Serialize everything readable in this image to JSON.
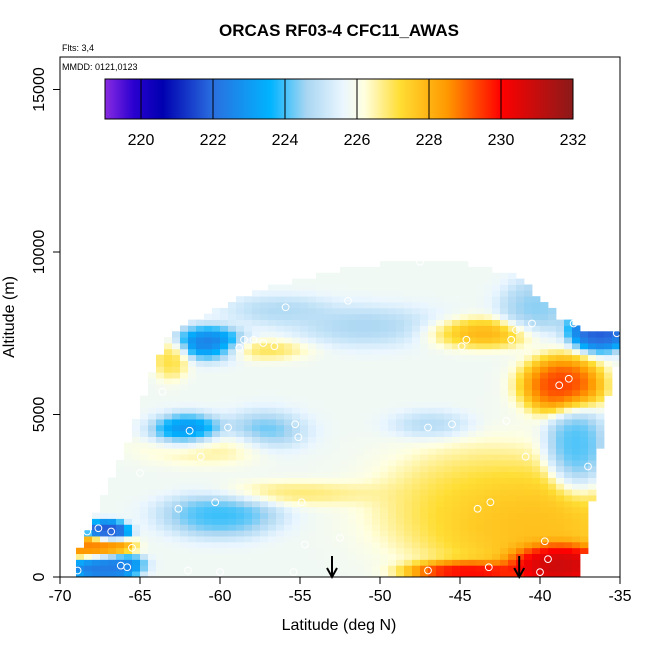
{
  "chart_data": {
    "type": "heatmap",
    "title": "ORCAS RF03-4 CFC11_AWAS",
    "xlabel": "Latitude (deg N)",
    "ylabel": "Altitude (m)",
    "notes": [
      "Flts: 3,4",
      "MMDD: 0121,0123"
    ],
    "xlim": [
      -70,
      -35
    ],
    "ylim": [
      0,
      16000
    ],
    "x_ticks": [
      -70,
      -65,
      -60,
      -55,
      -50,
      -45,
      -40,
      -35
    ],
    "x_tick_labels": [
      "-70",
      "-65",
      "-60",
      "-55",
      "-50",
      "-45",
      "-40",
      "-35"
    ],
    "y_ticks": [
      0,
      5000,
      10000,
      15000
    ],
    "y_tick_labels": [
      "0",
      "5000",
      "10000",
      "15000"
    ],
    "colorbar": {
      "min": 219,
      "max": 232,
      "ticks": [
        220,
        222,
        224,
        226,
        228,
        230,
        232
      ],
      "tick_labels": [
        "220",
        "222",
        "224",
        "226",
        "228",
        "230",
        "232"
      ],
      "stops": [
        {
          "v": 219.0,
          "color": "#8a2be2"
        },
        {
          "v": 219.8,
          "color": "#2a00d0"
        },
        {
          "v": 220.6,
          "color": "#0000b0"
        },
        {
          "v": 222.0,
          "color": "#2a6fe0"
        },
        {
          "v": 223.6,
          "color": "#00b4ff"
        },
        {
          "v": 224.6,
          "color": "#a9d6f2"
        },
        {
          "v": 225.6,
          "color": "#eaf6ff"
        },
        {
          "v": 226.2,
          "color": "#ffffe0"
        },
        {
          "v": 227.2,
          "color": "#ffdd33"
        },
        {
          "v": 228.5,
          "color": "#ff9900"
        },
        {
          "v": 230.0,
          "color": "#ff0000"
        },
        {
          "v": 232.0,
          "color": "#8b1a1a"
        }
      ]
    },
    "envelope": [
      [
        -69.0,
        500
      ],
      [
        -68.6,
        1000
      ],
      [
        -68.0,
        1800
      ],
      [
        -67.0,
        2800
      ],
      [
        -65.5,
        4500
      ],
      [
        -64.5,
        6000
      ],
      [
        -63.5,
        7200
      ],
      [
        -62.0,
        7800
      ],
      [
        -59.0,
        8500
      ],
      [
        -57.0,
        8900
      ],
      [
        -54.0,
        9300
      ],
      [
        -51.0,
        9600
      ],
      [
        -48.0,
        9700
      ],
      [
        -46.5,
        9800
      ],
      [
        -44.0,
        9600
      ],
      [
        -41.5,
        9300
      ],
      [
        -40.0,
        8600
      ],
      [
        -38.8,
        8000
      ],
      [
        -37.5,
        7600
      ],
      [
        -35.0,
        7600
      ],
      [
        -35.0,
        7000
      ],
      [
        -36.0,
        5000
      ],
      [
        -36.5,
        3000
      ],
      [
        -37.0,
        1500
      ],
      [
        -37.5,
        0
      ],
      [
        -69.3,
        0
      ]
    ],
    "features": [
      {
        "lat": -52.0,
        "alt": 5600,
        "value": 225.8,
        "sx": 10.0,
        "sy": 4000
      },
      {
        "lat": -45.0,
        "alt": 2500,
        "value": 227.6,
        "sx": 4.5,
        "sy": 1300
      },
      {
        "lat": -42.0,
        "alt": 1800,
        "value": 228.0,
        "sx": 3.5,
        "sy": 1000
      },
      {
        "lat": -39.5,
        "alt": 500,
        "value": 231.3,
        "sx": 1.8,
        "sy": 400
      },
      {
        "lat": -44.5,
        "alt": 200,
        "value": 230.5,
        "sx": 2.5,
        "sy": 220
      },
      {
        "lat": -39.0,
        "alt": 5900,
        "value": 230.0,
        "sx": 1.7,
        "sy": 600
      },
      {
        "lat": -44.0,
        "alt": 7500,
        "value": 228.8,
        "sx": 2.5,
        "sy": 350
      },
      {
        "lat": -57.0,
        "alt": 7000,
        "value": 227.8,
        "sx": 2.2,
        "sy": 260
      },
      {
        "lat": -63.0,
        "alt": 6700,
        "value": 227.5,
        "sx": 0.8,
        "sy": 450
      },
      {
        "lat": -67.5,
        "alt": 900,
        "value": 228.8,
        "sx": 1.2,
        "sy": 260
      },
      {
        "lat": -60.0,
        "alt": 4000,
        "value": 227.0,
        "sx": 3.0,
        "sy": 400
      },
      {
        "lat": -55.0,
        "alt": 2600,
        "value": 227.3,
        "sx": 4.0,
        "sy": 300
      },
      {
        "lat": -60.5,
        "alt": 7200,
        "value": 221.0,
        "sx": 1.6,
        "sy": 380
      },
      {
        "lat": -61.8,
        "alt": 4500,
        "value": 221.6,
        "sx": 1.6,
        "sy": 380
      },
      {
        "lat": -67.0,
        "alt": 1400,
        "value": 221.5,
        "sx": 0.8,
        "sy": 200
      },
      {
        "lat": -67.0,
        "alt": 400,
        "value": 222.2,
        "sx": 1.2,
        "sy": 250
      },
      {
        "lat": -57.0,
        "alt": 4500,
        "value": 223.0,
        "sx": 2.0,
        "sy": 500
      },
      {
        "lat": -51.0,
        "alt": 7700,
        "value": 223.8,
        "sx": 3.5,
        "sy": 500
      },
      {
        "lat": -56.0,
        "alt": 8200,
        "value": 224.2,
        "sx": 2.5,
        "sy": 350
      },
      {
        "lat": -36.5,
        "alt": 7600,
        "value": 221.5,
        "sx": 1.2,
        "sy": 400
      },
      {
        "lat": -59.5,
        "alt": 2000,
        "value": 223.5,
        "sx": 2.5,
        "sy": 500
      },
      {
        "lat": -38.0,
        "alt": 4000,
        "value": 223.8,
        "sx": 1.2,
        "sy": 900
      },
      {
        "lat": -47.0,
        "alt": 4700,
        "value": 224.0,
        "sx": 2.0,
        "sy": 350
      },
      {
        "lat": -40.5,
        "alt": 8200,
        "value": 224.2,
        "sx": 1.5,
        "sy": 600
      }
    ],
    "samples": [
      [
        -68.9,
        200
      ],
      [
        -68.3,
        1400
      ],
      [
        -67.6,
        1500
      ],
      [
        -66.8,
        1400
      ],
      [
        -66.2,
        350
      ],
      [
        -65.5,
        900
      ],
      [
        -65.0,
        3200
      ],
      [
        -64.3,
        7100
      ],
      [
        -63.6,
        5700
      ],
      [
        -62.6,
        2100
      ],
      [
        -61.9,
        4500
      ],
      [
        -61.2,
        3700
      ],
      [
        -60.3,
        2300
      ],
      [
        -59.5,
        4600
      ],
      [
        -58.5,
        7300
      ],
      [
        -58.8,
        7050
      ],
      [
        -57.9,
        7300
      ],
      [
        -57.3,
        7200
      ],
      [
        -56.6,
        7100
      ],
      [
        -55.9,
        8300
      ],
      [
        -55.3,
        4700
      ],
      [
        -55.1,
        4300
      ],
      [
        -54.9,
        2300
      ],
      [
        -54.7,
        1000
      ],
      [
        -52.0,
        8500
      ],
      [
        -47.5,
        9700
      ],
      [
        -47.0,
        4600
      ],
      [
        -45.5,
        4700
      ],
      [
        -44.9,
        7100
      ],
      [
        -44.6,
        7300
      ],
      [
        -43.9,
        2100
      ],
      [
        -43.1,
        2300
      ],
      [
        -42.1,
        4800
      ],
      [
        -41.8,
        7300
      ],
      [
        -41.5,
        7600
      ],
      [
        -40.9,
        3700
      ],
      [
        -40.5,
        7800
      ],
      [
        -39.7,
        1100
      ],
      [
        -39.5,
        550
      ],
      [
        -38.8,
        5900
      ],
      [
        -38.2,
        6100
      ],
      [
        -37.9,
        7800
      ],
      [
        -37.0,
        3400
      ],
      [
        -35.2,
        7500
      ],
      [
        -47.0,
        200
      ],
      [
        -43.2,
        300
      ],
      [
        -40.0,
        150
      ],
      [
        -60.0,
        150
      ],
      [
        -62.0,
        200
      ],
      [
        -65.8,
        300
      ],
      [
        -52.5,
        1200
      ],
      [
        -55.4,
        150
      ]
    ],
    "arrows": [
      {
        "lat": -53.0
      },
      {
        "lat": -41.3
      }
    ]
  }
}
